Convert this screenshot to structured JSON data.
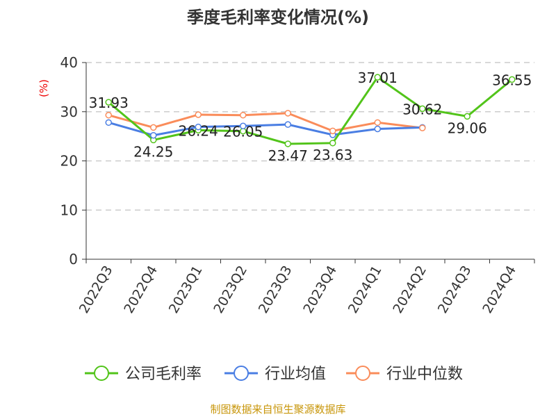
{
  "chart_data": {
    "type": "line",
    "title": "季度毛利率变化情况(%)",
    "ylabel": "(%)",
    "xlabel": "",
    "ylim": [
      0,
      40
    ],
    "yticks": [
      0,
      10,
      20,
      30,
      40
    ],
    "grid": true,
    "legend_position": "bottom",
    "categories": [
      "2022Q3",
      "2022Q4",
      "2023Q1",
      "2023Q2",
      "2023Q3",
      "2023Q4",
      "2024Q1",
      "2024Q2",
      "2024Q3",
      "2024Q4"
    ],
    "series": [
      {
        "name": "公司毛利率",
        "color": "#52c41a",
        "labels": true,
        "values": [
          31.93,
          24.25,
          26.24,
          26.05,
          23.47,
          23.63,
          37.01,
          30.62,
          29.06,
          36.55
        ]
      },
      {
        "name": "行业均值",
        "color": "#4a7ee3",
        "labels": false,
        "values": [
          27.8,
          25.2,
          26.9,
          27.1,
          27.4,
          25.3,
          26.5,
          26.8,
          null,
          null
        ]
      },
      {
        "name": "行业中位数",
        "color": "#fa8c5a",
        "labels": false,
        "values": [
          29.3,
          26.8,
          29.4,
          29.3,
          29.7,
          26.1,
          27.8,
          26.7,
          null,
          null
        ]
      }
    ]
  },
  "source": "制图数据来自恒生聚源数据库"
}
